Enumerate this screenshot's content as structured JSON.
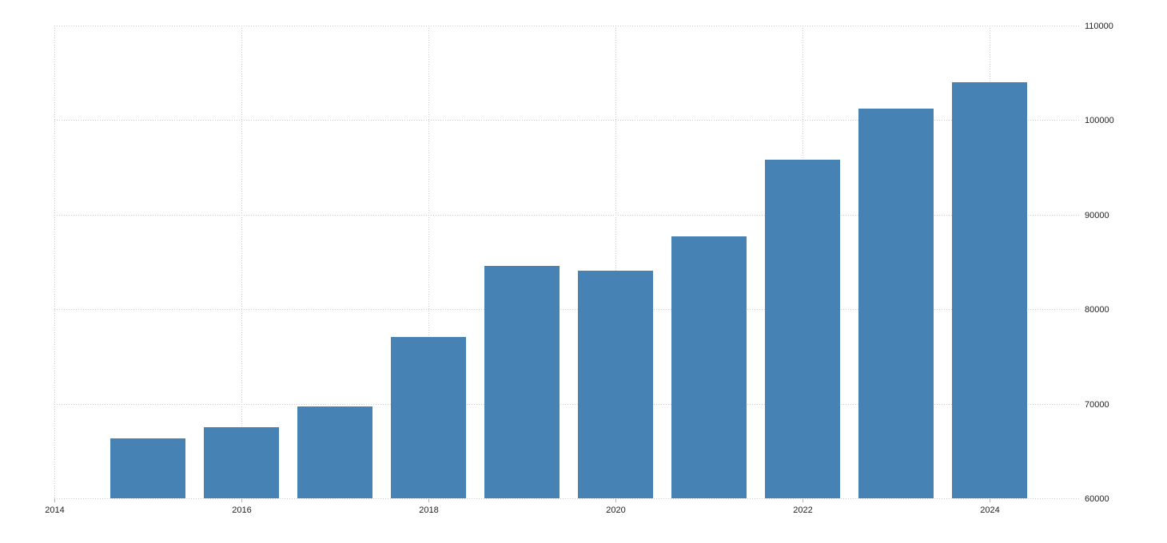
{
  "page": {
    "background": "#ffffff"
  },
  "chart_data": {
    "type": "bar",
    "title": "",
    "xlabel": "",
    "ylabel": "",
    "x": [
      2015,
      2016,
      2017,
      2018,
      2019,
      2020,
      2021,
      2022,
      2023,
      2024
    ],
    "values": [
      66300,
      67500,
      69700,
      77100,
      84600,
      84100,
      87700,
      95800,
      101200,
      104000
    ],
    "xlim": [
      2014,
      2024.97
    ],
    "ylim": [
      60000,
      110000
    ],
    "x_ticks": [
      2014,
      2016,
      2018,
      2020,
      2022,
      2024
    ],
    "x_tick_labels": [
      "2014",
      "2016",
      "2018",
      "2020",
      "2022",
      "2024"
    ],
    "y_ticks": [
      60000,
      70000,
      80000,
      90000,
      100000,
      110000
    ],
    "y_tick_labels": [
      "60000",
      "70000",
      "80000",
      "90000",
      "100000",
      "110000"
    ],
    "grid": true,
    "gridline_style": "dotted",
    "legend": "none",
    "y_axis_side": "right",
    "bar_width_years": 0.8,
    "colors": {
      "bar": "#4682b4",
      "grid": "#cccccc",
      "tick": "#b3b3b3",
      "label": "#222222",
      "background": "#ffffff"
    }
  }
}
